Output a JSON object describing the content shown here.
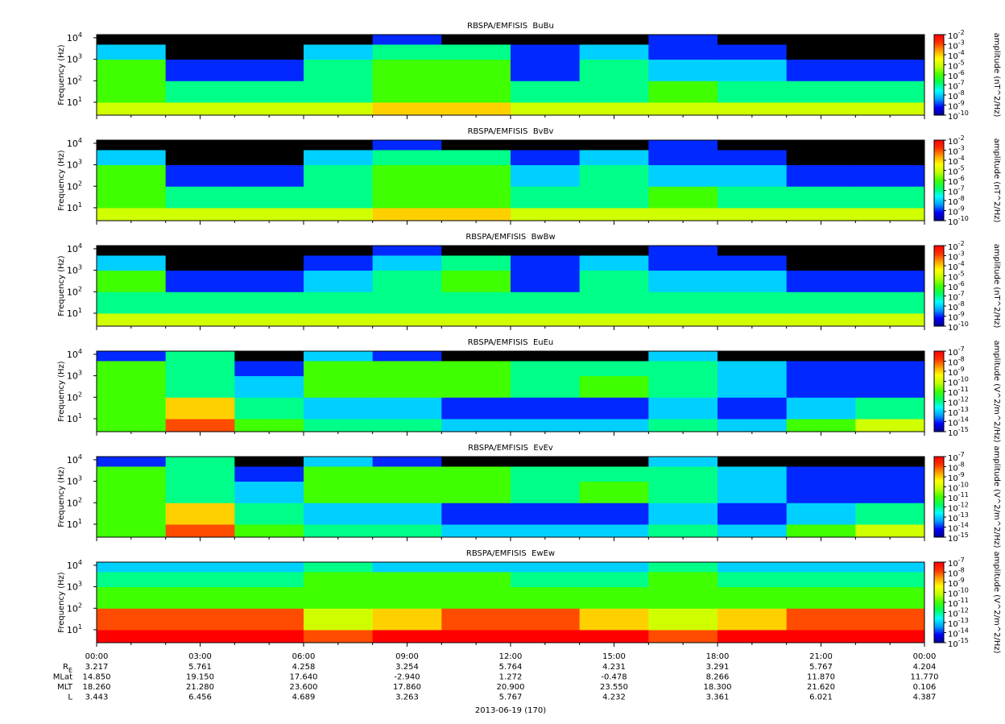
{
  "time_axis": {
    "xlim": [
      0,
      24
    ],
    "xticks": [
      {
        "value": 0,
        "label": "00:00"
      },
      {
        "value": 3,
        "label": "03:00"
      },
      {
        "value": 6,
        "label": "06:00"
      },
      {
        "value": 9,
        "label": "09:00"
      },
      {
        "value": 12,
        "label": "12:00"
      },
      {
        "value": 15,
        "label": "15:00"
      },
      {
        "value": 18,
        "label": "18:00"
      },
      {
        "value": 21,
        "label": "21:00"
      },
      {
        "value": 24,
        "label": "00:00"
      }
    ],
    "ephemeris": [
      {
        "name": "R",
        "subscript": "E",
        "values": [
          "3.217",
          "5.761",
          "4.258",
          "3.254",
          "5.764",
          "4.231",
          "3.291",
          "5.767",
          "4.204"
        ]
      },
      {
        "name": "MLat",
        "values": [
          "14.850",
          "19.150",
          "17.640",
          "-2.940",
          "1.272",
          "-0.478",
          "8.266",
          "11.870",
          "11.770"
        ]
      },
      {
        "name": "MLT",
        "values": [
          "18.260",
          "21.280",
          "23.600",
          "17.860",
          "20.900",
          "23.550",
          "18.300",
          "21.620",
          "0.106"
        ]
      },
      {
        "name": "L",
        "values": [
          "3.443",
          "6.456",
          "4.689",
          "3.263",
          "5.767",
          "4.232",
          "3.361",
          "6.021",
          "4.387"
        ]
      }
    ],
    "date": "2013-06-19 (170)"
  },
  "colormap": [
    "#000090",
    "#0000ff",
    "#00a0ff",
    "#00ffff",
    "#00ff60",
    "#40ff00",
    "#c0ff00",
    "#ffff00",
    "#ffa000",
    "#ff3000",
    "#ff0000"
  ],
  "below_color": "#000000",
  "chart_data": [
    {
      "type": "heatmap",
      "title": "RBSPA/EMFISIS  BuBu",
      "ylabel": "Frequency (Hz)",
      "log_y": true,
      "ylim": [
        2.5,
        14000
      ],
      "yticks": [
        {
          "value": 10,
          "label": "10^1"
        },
        {
          "value": 100,
          "label": "10^2"
        },
        {
          "value": 1000,
          "label": "10^3"
        },
        {
          "value": 10000,
          "label": "10^4"
        }
      ],
      "zlabel": "amplitude (nT^2/Hz)",
      "zlim": [
        1e-10,
        0.01
      ],
      "zticks": [
        {
          "value": 1e-10,
          "label": "10^-10"
        },
        {
          "value": 1e-09,
          "label": "10^-9"
        },
        {
          "value": 1e-08,
          "label": "10^-8"
        },
        {
          "value": 1e-07,
          "label": "10^-7"
        },
        {
          "value": 1e-06,
          "label": "10^-6"
        },
        {
          "value": 1e-05,
          "label": "10^-5"
        },
        {
          "value": 0.0001,
          "label": "10^-4"
        },
        {
          "value": 0.001,
          "label": "10^-3"
        },
        {
          "value": 0.01,
          "label": "10^-2"
        }
      ],
      "time_bins": [
        0,
        2,
        4,
        6,
        8,
        10,
        12,
        14,
        16,
        18,
        20,
        22,
        24
      ],
      "freq_bins": [
        2.5,
        10,
        100,
        1000,
        5000,
        14000
      ],
      "values": [
        [
          1e-05,
          1e-05,
          1e-05,
          1e-05,
          0.0001,
          0.0001,
          1e-05,
          1e-05,
          1e-05,
          1e-05,
          1e-05,
          1e-05
        ],
        [
          1e-06,
          1e-07,
          1e-07,
          1e-07,
          1e-06,
          1e-06,
          1e-07,
          1e-07,
          1e-06,
          1e-07,
          1e-07,
          1e-07
        ],
        [
          1e-06,
          1e-09,
          1e-09,
          1e-07,
          1e-06,
          1e-06,
          1e-09,
          1e-07,
          1e-08,
          1e-08,
          1e-09,
          1e-09
        ],
        [
          1e-08,
          1e-11,
          1e-11,
          1e-08,
          1e-07,
          1e-07,
          1e-09,
          1e-08,
          1e-09,
          1e-09,
          1e-11,
          1e-11
        ],
        [
          1e-11,
          1e-11,
          1e-11,
          1e-11,
          1e-09,
          1e-11,
          1e-11,
          1e-11,
          1e-09,
          1e-11,
          1e-11,
          1e-11
        ]
      ]
    },
    {
      "type": "heatmap",
      "title": "RBSPA/EMFISIS  BvBv",
      "ylabel": "Frequency (Hz)",
      "log_y": true,
      "ylim": [
        2.5,
        14000
      ],
      "yticks": [
        {
          "value": 10,
          "label": "10^1"
        },
        {
          "value": 100,
          "label": "10^2"
        },
        {
          "value": 1000,
          "label": "10^3"
        },
        {
          "value": 10000,
          "label": "10^4"
        }
      ],
      "zlabel": "amplitude (nT^2/Hz)",
      "zlim": [
        1e-10,
        0.01
      ],
      "zticks": [
        {
          "value": 1e-10,
          "label": "10^-10"
        },
        {
          "value": 1e-09,
          "label": "10^-9"
        },
        {
          "value": 1e-08,
          "label": "10^-8"
        },
        {
          "value": 1e-07,
          "label": "10^-7"
        },
        {
          "value": 1e-06,
          "label": "10^-6"
        },
        {
          "value": 1e-05,
          "label": "10^-5"
        },
        {
          "value": 0.0001,
          "label": "10^-4"
        },
        {
          "value": 0.001,
          "label": "10^-3"
        },
        {
          "value": 0.01,
          "label": "10^-2"
        }
      ],
      "time_bins": [
        0,
        2,
        4,
        6,
        8,
        10,
        12,
        14,
        16,
        18,
        20,
        22,
        24
      ],
      "freq_bins": [
        2.5,
        10,
        100,
        1000,
        5000,
        14000
      ],
      "values": [
        [
          1e-05,
          1e-05,
          1e-05,
          1e-05,
          0.0001,
          0.0001,
          1e-05,
          1e-05,
          1e-05,
          1e-05,
          1e-05,
          1e-05
        ],
        [
          1e-06,
          1e-07,
          1e-07,
          1e-07,
          1e-06,
          1e-06,
          1e-07,
          1e-07,
          1e-06,
          1e-07,
          1e-07,
          1e-07
        ],
        [
          1e-06,
          1e-09,
          1e-09,
          1e-07,
          1e-06,
          1e-06,
          1e-08,
          1e-07,
          1e-08,
          1e-08,
          1e-09,
          1e-09
        ],
        [
          1e-08,
          1e-11,
          1e-11,
          1e-08,
          1e-07,
          1e-07,
          1e-09,
          1e-08,
          1e-09,
          1e-09,
          1e-11,
          1e-11
        ],
        [
          1e-11,
          1e-11,
          1e-11,
          1e-11,
          1e-09,
          1e-11,
          1e-11,
          1e-11,
          1e-09,
          1e-11,
          1e-11,
          1e-11
        ]
      ]
    },
    {
      "type": "heatmap",
      "title": "RBSPA/EMFISIS  BwBw",
      "ylabel": "Frequency (Hz)",
      "log_y": true,
      "ylim": [
        2.5,
        14000
      ],
      "yticks": [
        {
          "value": 10,
          "label": "10^1"
        },
        {
          "value": 100,
          "label": "10^2"
        },
        {
          "value": 1000,
          "label": "10^3"
        },
        {
          "value": 10000,
          "label": "10^4"
        }
      ],
      "zlabel": "amplitude (nT^2/Hz)",
      "zlim": [
        1e-10,
        0.01
      ],
      "zticks": [
        {
          "value": 1e-10,
          "label": "10^-10"
        },
        {
          "value": 1e-09,
          "label": "10^-9"
        },
        {
          "value": 1e-08,
          "label": "10^-8"
        },
        {
          "value": 1e-07,
          "label": "10^-7"
        },
        {
          "value": 1e-06,
          "label": "10^-6"
        },
        {
          "value": 1e-05,
          "label": "10^-5"
        },
        {
          "value": 0.0001,
          "label": "10^-4"
        },
        {
          "value": 0.001,
          "label": "10^-3"
        },
        {
          "value": 0.01,
          "label": "10^-2"
        }
      ],
      "time_bins": [
        0,
        2,
        4,
        6,
        8,
        10,
        12,
        14,
        16,
        18,
        20,
        22,
        24
      ],
      "freq_bins": [
        2.5,
        10,
        100,
        1000,
        5000,
        14000
      ],
      "values": [
        [
          1e-05,
          1e-05,
          1e-05,
          1e-05,
          1e-05,
          1e-05,
          1e-05,
          1e-05,
          1e-05,
          1e-05,
          1e-05,
          1e-05
        ],
        [
          1e-07,
          1e-07,
          1e-07,
          1e-07,
          1e-07,
          1e-07,
          1e-07,
          1e-07,
          1e-07,
          1e-07,
          1e-07,
          1e-07
        ],
        [
          1e-06,
          1e-09,
          1e-09,
          1e-08,
          1e-07,
          1e-06,
          1e-09,
          1e-07,
          1e-08,
          1e-08,
          1e-09,
          1e-09
        ],
        [
          1e-08,
          1e-11,
          1e-11,
          1e-09,
          1e-08,
          1e-07,
          1e-09,
          1e-08,
          1e-09,
          1e-09,
          1e-11,
          1e-11
        ],
        [
          1e-11,
          1e-11,
          1e-11,
          1e-11,
          1e-09,
          1e-11,
          1e-11,
          1e-11,
          1e-09,
          1e-11,
          1e-11,
          1e-11
        ]
      ]
    },
    {
      "type": "heatmap",
      "title": "RBSPA/EMFISIS  EuEu",
      "ylabel": "Frequency (Hz)",
      "log_y": true,
      "ylim": [
        2.5,
        14000
      ],
      "yticks": [
        {
          "value": 10,
          "label": "10^1"
        },
        {
          "value": 100,
          "label": "10^2"
        },
        {
          "value": 1000,
          "label": "10^3"
        },
        {
          "value": 10000,
          "label": "10^4"
        }
      ],
      "zlabel": "amplitude (V^2/m^2/Hz)",
      "zlim": [
        1e-15,
        1e-07
      ],
      "zticks": [
        {
          "value": 1e-15,
          "label": "10^-15"
        },
        {
          "value": 1e-14,
          "label": "10^-14"
        },
        {
          "value": 1e-13,
          "label": "10^-13"
        },
        {
          "value": 1e-12,
          "label": "10^-12"
        },
        {
          "value": 1e-11,
          "label": "10^-11"
        },
        {
          "value": 1e-10,
          "label": "10^-10"
        },
        {
          "value": 1e-09,
          "label": "10^-9"
        },
        {
          "value": 1e-08,
          "label": "10^-8"
        },
        {
          "value": 1e-07,
          "label": "10^-7"
        }
      ],
      "time_bins": [
        0,
        2,
        4,
        6,
        8,
        10,
        12,
        14,
        16,
        18,
        20,
        22,
        24
      ],
      "freq_bins": [
        2.5,
        10,
        100,
        1000,
        5000,
        14000
      ],
      "values": [
        [
          1e-11,
          1e-08,
          1e-11,
          1e-12,
          1e-12,
          1e-13,
          1e-13,
          1e-13,
          1e-12,
          1e-13,
          1e-11,
          1e-10
        ],
        [
          1e-11,
          1e-09,
          1e-12,
          1e-13,
          1e-13,
          1e-14,
          1e-14,
          1e-14,
          1e-13,
          1e-14,
          1e-13,
          1e-12
        ],
        [
          1e-11,
          1e-12,
          1e-13,
          1e-11,
          1e-11,
          1e-11,
          1e-12,
          1e-11,
          1e-12,
          1e-13,
          1e-14,
          1e-14
        ],
        [
          1e-11,
          1e-12,
          1e-14,
          1e-11,
          1e-11,
          1e-11,
          1e-12,
          1e-12,
          1e-12,
          1e-13,
          1e-14,
          1e-14
        ],
        [
          1e-14,
          1e-12,
          1e-16,
          1e-13,
          1e-14,
          1e-16,
          1e-16,
          1e-16,
          1e-13,
          1e-16,
          1e-16,
          1e-16
        ]
      ]
    },
    {
      "type": "heatmap",
      "title": "RBSPA/EMFISIS  EvEv",
      "ylabel": "Frequency (Hz)",
      "log_y": true,
      "ylim": [
        2.5,
        14000
      ],
      "yticks": [
        {
          "value": 10,
          "label": "10^1"
        },
        {
          "value": 100,
          "label": "10^2"
        },
        {
          "value": 1000,
          "label": "10^3"
        },
        {
          "value": 10000,
          "label": "10^4"
        }
      ],
      "zlabel": "amplitude (V^2/m^2/Hz)",
      "zlim": [
        1e-15,
        1e-07
      ],
      "zticks": [
        {
          "value": 1e-15,
          "label": "10^-15"
        },
        {
          "value": 1e-14,
          "label": "10^-14"
        },
        {
          "value": 1e-13,
          "label": "10^-13"
        },
        {
          "value": 1e-12,
          "label": "10^-12"
        },
        {
          "value": 1e-11,
          "label": "10^-11"
        },
        {
          "value": 1e-10,
          "label": "10^-10"
        },
        {
          "value": 1e-09,
          "label": "10^-9"
        },
        {
          "value": 1e-08,
          "label": "10^-8"
        },
        {
          "value": 1e-07,
          "label": "10^-7"
        }
      ],
      "time_bins": [
        0,
        2,
        4,
        6,
        8,
        10,
        12,
        14,
        16,
        18,
        20,
        22,
        24
      ],
      "freq_bins": [
        2.5,
        10,
        100,
        1000,
        5000,
        14000
      ],
      "values": [
        [
          1e-11,
          1e-08,
          1e-11,
          1e-12,
          1e-12,
          1e-13,
          1e-13,
          1e-13,
          1e-12,
          1e-13,
          1e-11,
          1e-10
        ],
        [
          1e-11,
          1e-09,
          1e-12,
          1e-13,
          1e-13,
          1e-14,
          1e-14,
          1e-14,
          1e-13,
          1e-14,
          1e-13,
          1e-12
        ],
        [
          1e-11,
          1e-12,
          1e-13,
          1e-11,
          1e-11,
          1e-11,
          1e-12,
          1e-11,
          1e-12,
          1e-13,
          1e-14,
          1e-14
        ],
        [
          1e-11,
          1e-12,
          1e-14,
          1e-11,
          1e-11,
          1e-11,
          1e-12,
          1e-12,
          1e-12,
          1e-13,
          1e-14,
          1e-14
        ],
        [
          1e-14,
          1e-12,
          1e-16,
          1e-13,
          1e-14,
          1e-16,
          1e-16,
          1e-16,
          1e-13,
          1e-16,
          1e-16,
          1e-16
        ]
      ]
    },
    {
      "type": "heatmap",
      "title": "RBSPA/EMFISIS  EwEw",
      "ylabel": "Frequency (Hz)",
      "log_y": true,
      "ylim": [
        2.5,
        14000
      ],
      "yticks": [
        {
          "value": 10,
          "label": "10^1"
        },
        {
          "value": 100,
          "label": "10^2"
        },
        {
          "value": 1000,
          "label": "10^3"
        },
        {
          "value": 10000,
          "label": "10^4"
        }
      ],
      "zlabel": "amplitude (V^2/m^2/Hz)",
      "zlim": [
        1e-15,
        1e-07
      ],
      "zticks": [
        {
          "value": 1e-15,
          "label": "10^-15"
        },
        {
          "value": 1e-14,
          "label": "10^-14"
        },
        {
          "value": 1e-13,
          "label": "10^-13"
        },
        {
          "value": 1e-12,
          "label": "10^-12"
        },
        {
          "value": 1e-11,
          "label": "10^-11"
        },
        {
          "value": 1e-10,
          "label": "10^-10"
        },
        {
          "value": 1e-09,
          "label": "10^-9"
        },
        {
          "value": 1e-08,
          "label": "10^-8"
        },
        {
          "value": 1e-07,
          "label": "10^-7"
        }
      ],
      "time_bins": [
        0,
        2,
        4,
        6,
        8,
        10,
        12,
        14,
        16,
        18,
        20,
        22,
        24
      ],
      "freq_bins": [
        2.5,
        10,
        100,
        1000,
        5000,
        14000
      ],
      "values": [
        [
          1e-07,
          1e-07,
          1e-07,
          1e-08,
          1e-07,
          1e-07,
          1e-07,
          1e-07,
          1e-08,
          1e-07,
          1e-07,
          1e-07
        ],
        [
          1e-08,
          1e-08,
          1e-08,
          1e-10,
          1e-09,
          1e-08,
          1e-08,
          1e-09,
          1e-10,
          1e-09,
          1e-08,
          1e-08
        ],
        [
          1e-11,
          1e-11,
          1e-11,
          1e-11,
          1e-11,
          1e-11,
          1e-11,
          1e-11,
          1e-11,
          1e-11,
          1e-11,
          1e-11
        ],
        [
          1e-12,
          1e-12,
          1e-12,
          1e-11,
          1e-11,
          1e-11,
          1e-12,
          1e-12,
          1e-11,
          1e-12,
          1e-12,
          1e-12
        ],
        [
          1e-13,
          1e-13,
          1e-13,
          1e-12,
          1e-13,
          1e-13,
          1e-13,
          1e-13,
          1e-12,
          1e-13,
          1e-13,
          1e-13
        ]
      ]
    }
  ]
}
